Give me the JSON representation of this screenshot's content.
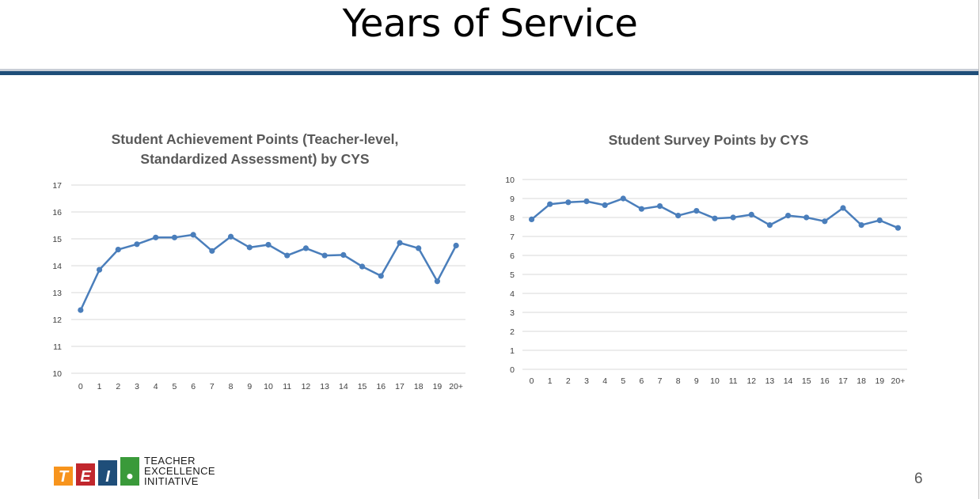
{
  "slide": {
    "title": "Years of Service",
    "page_number": "6",
    "logo": {
      "lines": [
        "TEACHER",
        "EXCELLENCE",
        "INITIATIVE"
      ],
      "letters": [
        "T",
        "E",
        "I"
      ],
      "colors": [
        "#f7941d",
        "#c1272d",
        "#1f4e79",
        "#3a9a3a"
      ]
    }
  },
  "colors": {
    "series": "#4a7ebb",
    "rule": "#1f4e79",
    "grid": "#d9d9d9"
  },
  "chart_data": [
    {
      "type": "line",
      "title_lines": [
        "Student Achievement Points (Teacher-level,",
        "Standardized Assessment) by CYS"
      ],
      "categories": [
        "0",
        "1",
        "2",
        "3",
        "4",
        "5",
        "6",
        "7",
        "8",
        "9",
        "10",
        "11",
        "12",
        "13",
        "14",
        "15",
        "16",
        "17",
        "18",
        "19",
        "20+"
      ],
      "values": [
        12.35,
        13.85,
        14.6,
        14.8,
        15.05,
        15.05,
        15.15,
        14.55,
        15.08,
        14.68,
        14.78,
        14.38,
        14.65,
        14.38,
        14.4,
        13.97,
        13.62,
        14.85,
        14.65,
        13.42,
        14.75
      ],
      "ylim": [
        10,
        17
      ],
      "yticks": [
        "10",
        "11",
        "12",
        "13",
        "14",
        "15",
        "16",
        "17"
      ],
      "grid": true,
      "legend": "none",
      "marker": "circle"
    },
    {
      "type": "line",
      "title_lines": [
        "Student Survey Points by CYS"
      ],
      "categories": [
        "0",
        "1",
        "2",
        "3",
        "4",
        "5",
        "6",
        "7",
        "8",
        "9",
        "10",
        "11",
        "12",
        "13",
        "14",
        "15",
        "16",
        "17",
        "18",
        "19",
        "20+"
      ],
      "values": [
        7.9,
        8.7,
        8.8,
        8.85,
        8.65,
        9.0,
        8.45,
        8.6,
        8.1,
        8.35,
        7.95,
        8.0,
        8.15,
        7.6,
        8.1,
        8.0,
        7.8,
        8.5,
        7.6,
        7.85,
        7.45
      ],
      "ylim": [
        0,
        10
      ],
      "yticks": [
        "0",
        "1",
        "2",
        "3",
        "4",
        "5",
        "6",
        "7",
        "8",
        "9",
        "10"
      ],
      "grid": true,
      "legend": "none",
      "marker": "circle"
    }
  ]
}
